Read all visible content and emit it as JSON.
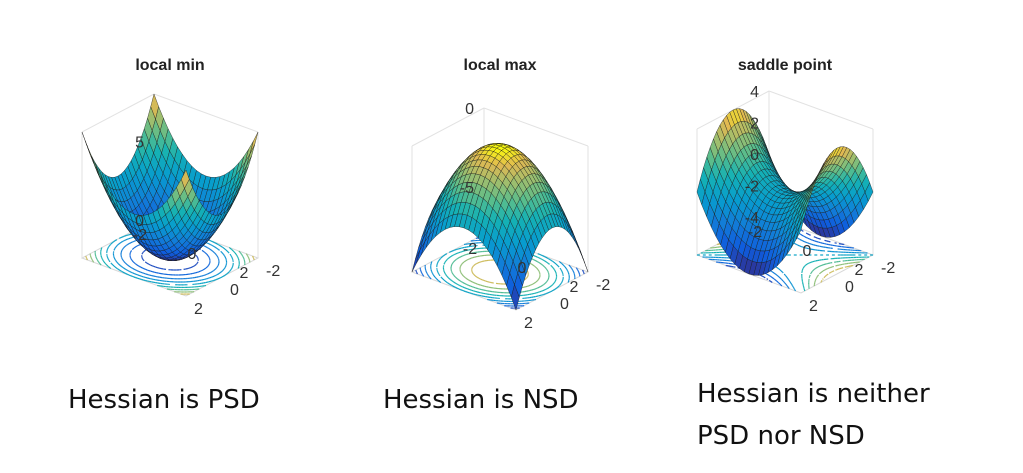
{
  "chart_data": [
    {
      "type": "surface",
      "title": "local min",
      "function": "z = x^2 + y^2",
      "x_range": [
        -2,
        2
      ],
      "y_range": [
        -2,
        2
      ],
      "zlim": [
        0,
        8
      ],
      "z_ticks": [
        "0",
        "5"
      ],
      "x_ticks": [
        "-2",
        "0",
        "2"
      ],
      "y_ticks": [
        "-2",
        "0",
        "2"
      ],
      "contours_on_floor": true,
      "caption": "Hessian is PSD"
    },
    {
      "type": "surface",
      "title": "local max",
      "function": "z = -(x^2 + y^2)",
      "x_range": [
        -2,
        2
      ],
      "y_range": [
        -2,
        2
      ],
      "zlim": [
        -8,
        0
      ],
      "z_ticks": [
        "-5",
        "0"
      ],
      "x_ticks": [
        "-2",
        "0",
        "2"
      ],
      "y_ticks": [
        "-2",
        "0",
        "2"
      ],
      "contours_on_floor": true,
      "caption": "Hessian is NSD"
    },
    {
      "type": "surface",
      "title": "saddle point",
      "function": "z = x^2 - y^2",
      "x_range": [
        -2,
        2
      ],
      "y_range": [
        -2,
        2
      ],
      "zlim": [
        -4,
        4
      ],
      "z_ticks": [
        "-4",
        "-2",
        "0",
        "2",
        "4"
      ],
      "x_ticks": [
        "-2",
        "0",
        "2"
      ],
      "y_ticks": [
        "-2",
        "0",
        "2"
      ],
      "contours_on_floor": true,
      "caption": "Hessian is neither PSD nor NSD"
    }
  ],
  "captions": {
    "psd": "Hessian is PSD",
    "nsd": "Hessian is NSD",
    "neither_line1": "Hessian is neither",
    "neither_line2": "PSD nor NSD"
  }
}
